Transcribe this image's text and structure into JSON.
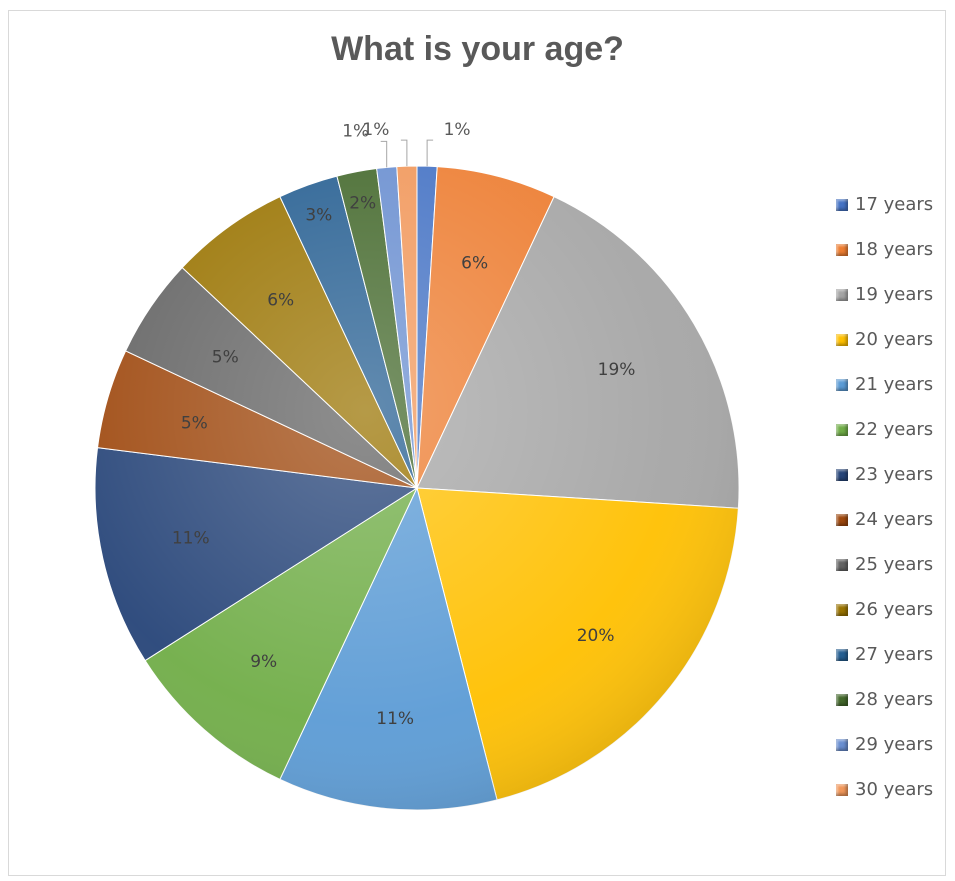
{
  "chart_data": {
    "type": "pie",
    "title": "What is your age?",
    "legend_position": "right",
    "slices": [
      {
        "category": "17 years",
        "value": 1,
        "label": "1%",
        "color": "#4472c4"
      },
      {
        "category": "18 years",
        "value": 6,
        "label": "6%",
        "color": "#ed7d31"
      },
      {
        "category": "19 years",
        "value": 19,
        "label": "19%",
        "color": "#a5a5a5"
      },
      {
        "category": "20 years",
        "value": 20,
        "label": "20%",
        "color": "#ffc000"
      },
      {
        "category": "21 years",
        "value": 11,
        "label": "11%",
        "color": "#5b9bd5"
      },
      {
        "category": "22 years",
        "value": 9,
        "label": "9%",
        "color": "#70ad47"
      },
      {
        "category": "23 years",
        "value": 11,
        "label": "11%",
        "color": "#264478"
      },
      {
        "category": "24 years",
        "value": 5,
        "label": "5%",
        "color": "#9e480e"
      },
      {
        "category": "25 years",
        "value": 5,
        "label": "5%",
        "color": "#636363"
      },
      {
        "category": "26 years",
        "value": 6,
        "label": "6%",
        "color": "#997300"
      },
      {
        "category": "27 years",
        "value": 3,
        "label": "3%",
        "color": "#255e91"
      },
      {
        "category": "28 years",
        "value": 2,
        "label": "2%",
        "color": "#43682b"
      },
      {
        "category": "29 years",
        "value": 1,
        "label": "1%",
        "color": "#698ed0"
      },
      {
        "category": "30 years",
        "value": 1,
        "label": "1%",
        "color": "#f1975a"
      }
    ]
  }
}
